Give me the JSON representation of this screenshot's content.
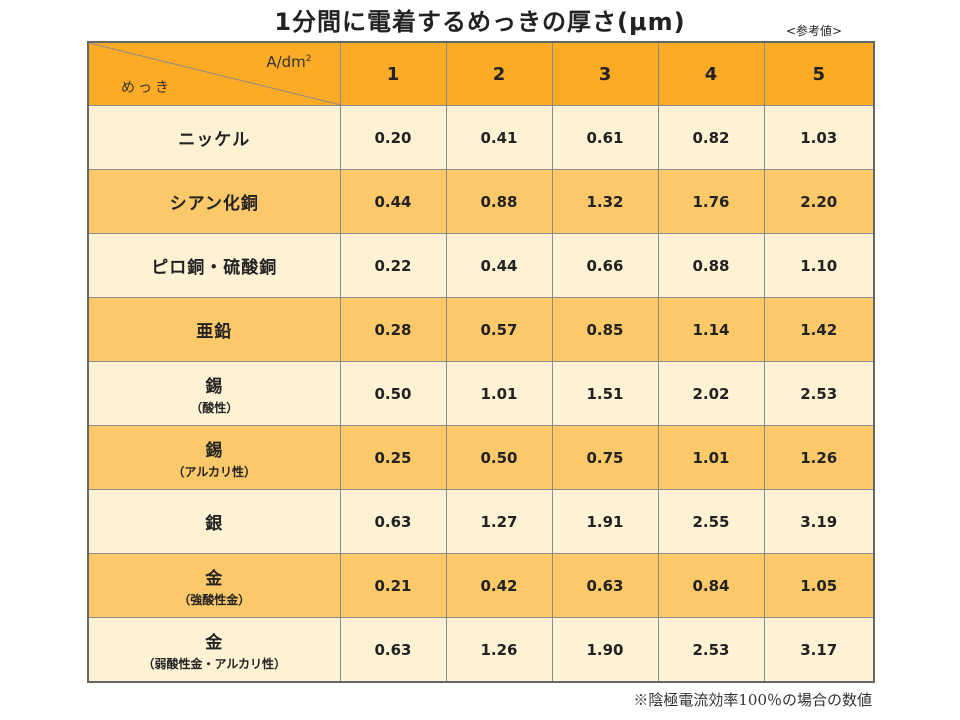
{
  "title": "1分間に電着するめっきの厚さ(μm)",
  "reference_label": "<参考値>",
  "footnote": "※陰極電流効率100％の場合の数値",
  "chart_data": {
    "type": "table",
    "title": "1分間に電着するめっきの厚さ(μm)",
    "column_axis_label": "A/dm",
    "column_axis_sup": "2",
    "row_axis_label": "めっき",
    "columns": [
      "1",
      "2",
      "3",
      "4",
      "5"
    ],
    "rows": [
      {
        "name": "ニッケル",
        "sub": "",
        "values": [
          "0.20",
          "0.41",
          "0.61",
          "0.82",
          "1.03"
        ]
      },
      {
        "name": "シアン化銅",
        "sub": "",
        "values": [
          "0.44",
          "0.88",
          "1.32",
          "1.76",
          "2.20"
        ]
      },
      {
        "name": "ピロ銅・硫酸銅",
        "sub": "",
        "values": [
          "0.22",
          "0.44",
          "0.66",
          "0.88",
          "1.10"
        ]
      },
      {
        "name": "亜鉛",
        "sub": "",
        "values": [
          "0.28",
          "0.57",
          "0.85",
          "1.14",
          "1.42"
        ]
      },
      {
        "name": "錫",
        "sub": "（酸性）",
        "values": [
          "0.50",
          "1.01",
          "1.51",
          "2.02",
          "2.53"
        ]
      },
      {
        "name": "錫",
        "sub": "（アルカリ性）",
        "values": [
          "0.25",
          "0.50",
          "0.75",
          "1.01",
          "1.26"
        ]
      },
      {
        "name": "銀",
        "sub": "",
        "values": [
          "0.63",
          "1.27",
          "1.91",
          "2.55",
          "3.19"
        ]
      },
      {
        "name": "金",
        "sub": "（強酸性金）",
        "values": [
          "0.21",
          "0.42",
          "0.63",
          "0.84",
          "1.05"
        ]
      },
      {
        "name": "金",
        "sub": "（弱酸性金・アルカリ性）",
        "values": [
          "0.63",
          "1.26",
          "1.90",
          "2.53",
          "3.17"
        ]
      }
    ]
  },
  "colors": {
    "header_bg": "#fbab25",
    "row_light": "#fdf3d4",
    "row_dark": "#fbc96a",
    "border": "#8a8a8a"
  }
}
